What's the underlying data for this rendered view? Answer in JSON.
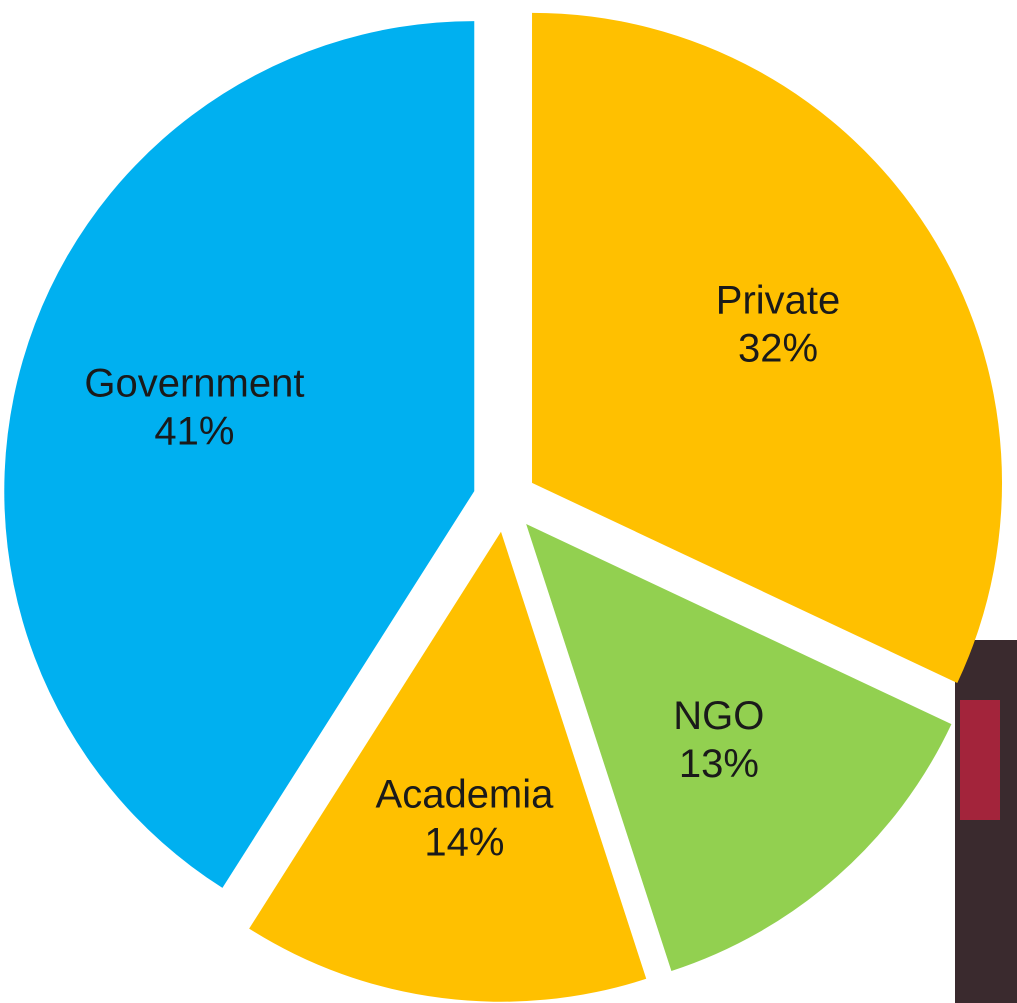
{
  "chart_data": {
    "type": "pie",
    "categories": [
      "Private",
      "NGO",
      "Academia",
      "Government"
    ],
    "values": [
      32,
      13,
      14,
      41
    ],
    "value_labels": [
      "32%",
      "13%",
      "14%",
      "41%"
    ],
    "colors": [
      "#FFC000",
      "#92D050",
      "#FFC000",
      "#00B0F0"
    ]
  }
}
